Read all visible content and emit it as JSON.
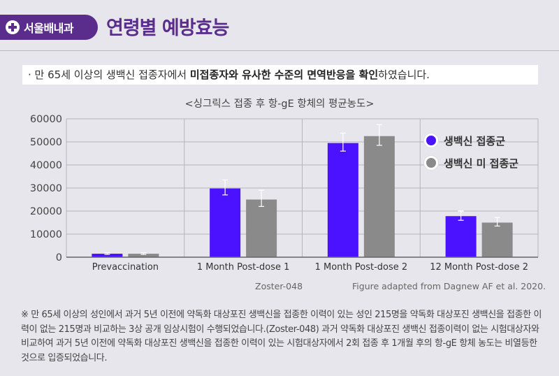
{
  "header": {
    "brand_name": "서울배내과",
    "title": "연령별 예방효능"
  },
  "summary": {
    "prefix": "· 만 65세 이상의 생백신 접종자에서 ",
    "bold": "미접종자와 유사한 수준의 면역반응을 확인",
    "suffix": "하였습니다."
  },
  "colors": {
    "accent": "#5a2d8c",
    "vaccinated": "#4a12ff",
    "unvaccinated": "#8a8a8a"
  },
  "chart_data": {
    "type": "bar",
    "title": "<싱그릭스 접종 후 항-gE 항체의 평균농도>",
    "categories": [
      "Prevaccination",
      "1 Month Post-dose 1",
      "1 Month Post-dose 2",
      "12 Month Post-dose 2"
    ],
    "series": [
      {
        "name": "생백신 접종군",
        "values": [
          1500,
          29800,
          49500,
          17800
        ],
        "err_low": [
          1200,
          27000,
          46000,
          16000
        ],
        "err_high": [
          1900,
          33500,
          53800,
          20000
        ]
      },
      {
        "name": "생백신 미 접종군",
        "values": [
          1500,
          25000,
          52500,
          15000
        ],
        "err_low": [
          1200,
          22000,
          48500,
          13500
        ],
        "err_high": [
          1900,
          29000,
          57500,
          17200
        ]
      }
    ],
    "yticks": [
      "0",
      "10000",
      "20000",
      "30000",
      "40000",
      "50000",
      "60000"
    ],
    "ylim": [
      0,
      60000
    ],
    "grid": true,
    "legend_position": "top-right"
  },
  "source": {
    "study": "Zoster-048",
    "citation": "Figure adapted from Dagnew AF et al. 2020."
  },
  "footnote": "※ 만 65세 이상의 성인에서 과거 5년 이전에 약독화 대상포진 생백신을 접종한 이력이 있는 성인 215명을 약독화 대상포진 생백신을 접종한 이력이 없는 215명과 비교하는 3상 공개 임상시험이 수행되었습니다.(Zoster-048) 과거 약독화 대상포진 생백신 접종이력이 없는 시험대상자와 비교하여 과거 5년 이전에 약독화 대상포진 생백신을 접종한 이력이 있는 시험대상자에서 2회 접종 후 1개월 후의 항-gE 항체 농도는 비열등한 것으로 입증되었습니다."
}
